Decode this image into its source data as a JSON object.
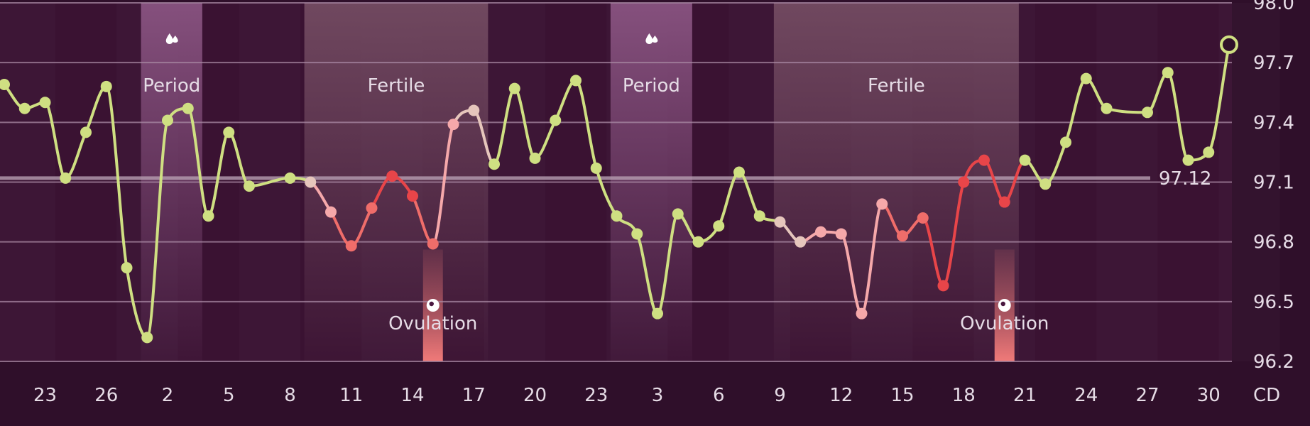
{
  "chart_data": {
    "type": "line",
    "ylim": [
      96.2,
      98.0
    ],
    "y_ticks": [
      "98.0",
      "97.7",
      "97.4",
      "97.1",
      "96.8",
      "96.5",
      "96.2"
    ],
    "x_ticks": [
      "23",
      "26",
      "2",
      "5",
      "8",
      "11",
      "14",
      "17",
      "20",
      "23",
      "3",
      "6",
      "9",
      "12",
      "15",
      "18",
      "21",
      "24",
      "27",
      "30"
    ],
    "axis_unit_label": "CD",
    "coverline": {
      "value": 97.12,
      "label": "97.12"
    },
    "phases": [
      {
        "type": "period",
        "label": "Period",
        "start": 6.7,
        "end": 9.7
      },
      {
        "type": "fertile",
        "label": "Fertile",
        "start": 14.7,
        "end": 23.7
      },
      {
        "type": "period",
        "label": "Period",
        "start": 29.7,
        "end": 33.7
      },
      {
        "type": "fertile",
        "label": "Fertile",
        "start": 37.7,
        "end": 49.7
      }
    ],
    "ovulations": [
      {
        "label": "Ovulation",
        "x": 21
      },
      {
        "label": "Ovulation",
        "x": 49
      }
    ],
    "series": [
      {
        "values": [
          {
            "x": 0,
            "y": 97.59,
            "c": "normal"
          },
          {
            "x": 1,
            "y": 97.47,
            "c": "normal"
          },
          {
            "x": 2,
            "y": 97.5,
            "c": "normal"
          },
          {
            "x": 3,
            "y": 97.12,
            "c": "normal"
          },
          {
            "x": 4,
            "y": 97.35,
            "c": "normal"
          },
          {
            "x": 5,
            "y": 97.58,
            "c": "normal"
          },
          {
            "x": 6,
            "y": 96.67,
            "c": "normal"
          },
          {
            "x": 7,
            "y": 96.32,
            "c": "normal"
          },
          {
            "x": 8,
            "y": 97.41,
            "c": "normal"
          },
          {
            "x": 9,
            "y": 97.47,
            "c": "normal"
          },
          {
            "x": 10,
            "y": 96.93,
            "c": "normal"
          },
          {
            "x": 11,
            "y": 97.35,
            "c": "normal"
          },
          {
            "x": 12,
            "y": 97.08,
            "c": "normal"
          },
          {
            "x": 14,
            "y": 97.12,
            "c": "normal"
          },
          {
            "x": 15,
            "y": 97.1,
            "c": "light"
          },
          {
            "x": 16,
            "y": 96.95,
            "c": "pink"
          },
          {
            "x": 17,
            "y": 96.78,
            "c": "salmon"
          },
          {
            "x": 18,
            "y": 96.97,
            "c": "salmon"
          },
          {
            "x": 19,
            "y": 97.13,
            "c": "red"
          },
          {
            "x": 20,
            "y": 97.03,
            "c": "red"
          },
          {
            "x": 21,
            "y": 96.79,
            "c": "salmon"
          },
          {
            "x": 22,
            "y": 97.39,
            "c": "pink"
          },
          {
            "x": 23,
            "y": 97.46,
            "c": "light"
          },
          {
            "x": 24,
            "y": 97.19,
            "c": "normal"
          },
          {
            "x": 25,
            "y": 97.57,
            "c": "normal"
          },
          {
            "x": 26,
            "y": 97.22,
            "c": "normal"
          },
          {
            "x": 27,
            "y": 97.41,
            "c": "normal"
          },
          {
            "x": 28,
            "y": 97.61,
            "c": "normal"
          },
          {
            "x": 29,
            "y": 97.17,
            "c": "normal"
          },
          {
            "x": 30,
            "y": 96.93,
            "c": "normal"
          },
          {
            "x": 31,
            "y": 96.84,
            "c": "normal"
          },
          {
            "x": 32,
            "y": 96.44,
            "c": "normal"
          },
          {
            "x": 33,
            "y": 96.94,
            "c": "normal"
          },
          {
            "x": 34,
            "y": 96.8,
            "c": "normal"
          },
          {
            "x": 35,
            "y": 96.88,
            "c": "normal"
          },
          {
            "x": 36,
            "y": 97.15,
            "c": "normal"
          },
          {
            "x": 37,
            "y": 96.93,
            "c": "normal"
          },
          {
            "x": 38,
            "y": 96.9,
            "c": "light"
          },
          {
            "x": 39,
            "y": 96.8,
            "c": "light"
          },
          {
            "x": 40,
            "y": 96.85,
            "c": "pink"
          },
          {
            "x": 41,
            "y": 96.84,
            "c": "pink"
          },
          {
            "x": 42,
            "y": 96.44,
            "c": "pink"
          },
          {
            "x": 43,
            "y": 96.99,
            "c": "pink"
          },
          {
            "x": 44,
            "y": 96.83,
            "c": "salmon"
          },
          {
            "x": 45,
            "y": 96.92,
            "c": "salmon"
          },
          {
            "x": 46,
            "y": 96.58,
            "c": "red"
          },
          {
            "x": 47,
            "y": 97.1,
            "c": "red"
          },
          {
            "x": 48,
            "y": 97.21,
            "c": "red"
          },
          {
            "x": 49,
            "y": 97.0,
            "c": "red"
          },
          {
            "x": 50,
            "y": 97.21,
            "c": "normal"
          },
          {
            "x": 51,
            "y": 97.09,
            "c": "normal"
          },
          {
            "x": 52,
            "y": 97.3,
            "c": "normal"
          },
          {
            "x": 53,
            "y": 97.62,
            "c": "normal"
          },
          {
            "x": 54,
            "y": 97.47,
            "c": "normal"
          },
          {
            "x": 56,
            "y": 97.45,
            "c": "normal"
          },
          {
            "x": 57,
            "y": 97.65,
            "c": "normal"
          },
          {
            "x": 58,
            "y": 97.21,
            "c": "normal"
          },
          {
            "x": 59,
            "y": 97.25,
            "c": "normal"
          },
          {
            "x": 60,
            "y": 97.79,
            "c": "hollow"
          }
        ]
      }
    ]
  },
  "colors": {
    "background": "#2f0f2a",
    "plot_band": "#3a1232",
    "grid": "#a98aa4",
    "period_band": "#85507d",
    "fertile_band": "#70485f",
    "ovulation_bar": "#f07a79",
    "normal": "#cfdf82",
    "light": "#e6c6bc",
    "pink": "#f5a8aa",
    "salmon": "#ef6d6a",
    "red": "#e84549",
    "text": "#e6dce6"
  },
  "icons": {
    "period": "drops-icon",
    "ovulation": "target-dot-icon"
  }
}
